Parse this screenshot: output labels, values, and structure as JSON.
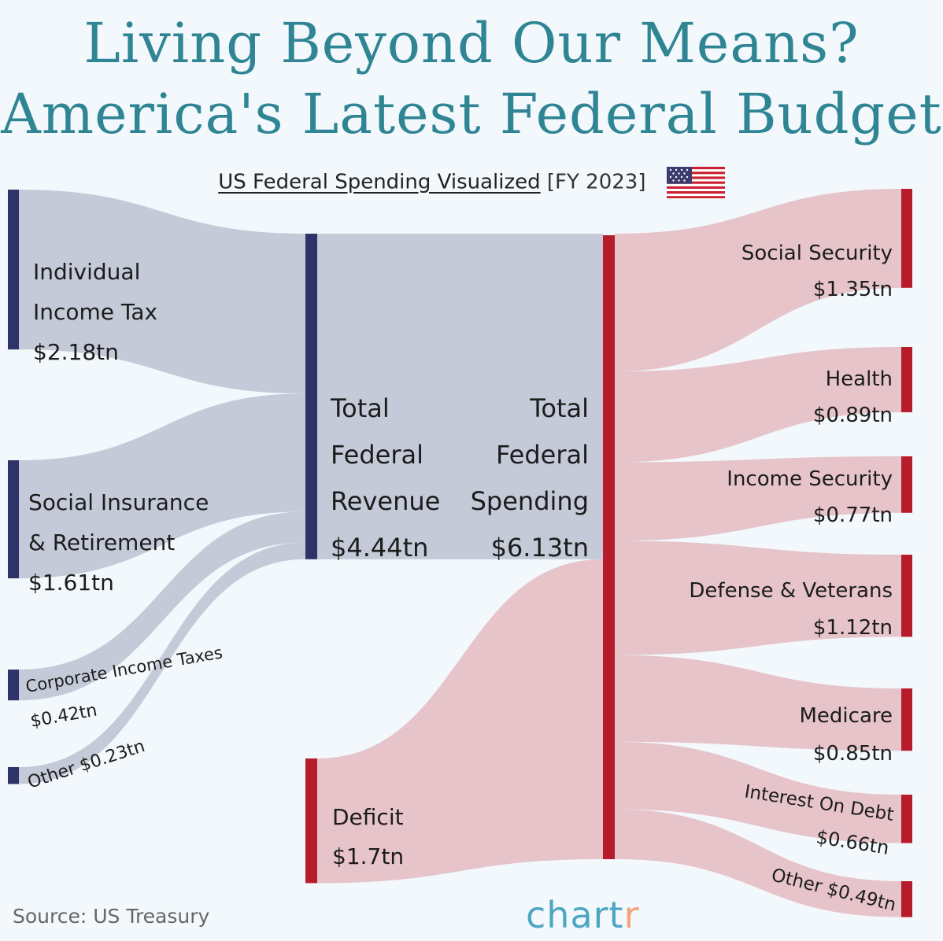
{
  "title_line1": "Living Beyond Our Means?",
  "title_line2": "America's Latest Federal Budget",
  "subtitle_main": "US Federal Spending Visualized",
  "subtitle_year": "[FY 2023]",
  "flag_icon": "us-flag-icon",
  "source": "Source: US Treasury",
  "logo_main": "chart",
  "logo_tail": "r",
  "colors": {
    "title": "#2f8594",
    "revenue_bar": "#2e3467",
    "revenue_flow": "#c4cad8",
    "spending_bar": "#b71c2c",
    "spending_flow": "#e6c4ca",
    "logo": "#4da7c4",
    "logo_accent": "#f2a37a"
  },
  "chart_data": {
    "type": "sankey",
    "units": "tn",
    "sources": [
      {
        "name_lines": [
          "Individual",
          "Income Tax"
        ],
        "value_label": "$2.18tn",
        "value": 2.18
      },
      {
        "name_lines": [
          "Social Insurance",
          "& Retirement"
        ],
        "value_label": "$1.61tn",
        "value": 1.61
      },
      {
        "name_lines": [
          "Corporate Income Taxes"
        ],
        "value_label": "$0.42tn",
        "value": 0.42
      },
      {
        "name_lines": [
          "Other $0.23tn"
        ],
        "value_label": "",
        "value": 0.23
      }
    ],
    "revenue": {
      "lines": [
        "Total",
        "Federal",
        "Revenue"
      ],
      "value_label": "$4.44tn",
      "value": 4.44
    },
    "deficit": {
      "name": "Deficit",
      "value_label": "$1.7tn",
      "value": 1.7
    },
    "spending_total": {
      "lines": [
        "Total",
        "Federal",
        "Spending"
      ],
      "value_label": "$6.13tn",
      "value": 6.13
    },
    "targets": [
      {
        "name": "Social Security",
        "value_label": "$1.35tn",
        "value": 1.35
      },
      {
        "name": "Health",
        "value_label": "$0.89tn",
        "value": 0.89
      },
      {
        "name": "Income Security",
        "value_label": "$0.77tn",
        "value": 0.77
      },
      {
        "name": "Defense & Veterans",
        "value_label": "$1.12tn",
        "value": 1.12
      },
      {
        "name": "Medicare",
        "value_label": "$0.85tn",
        "value": 0.85
      },
      {
        "name": "Interest On Debt",
        "value_label": "$0.66tn",
        "value": 0.66
      },
      {
        "name": "Other $0.49tn",
        "value_label": "",
        "value": 0.49
      }
    ]
  }
}
